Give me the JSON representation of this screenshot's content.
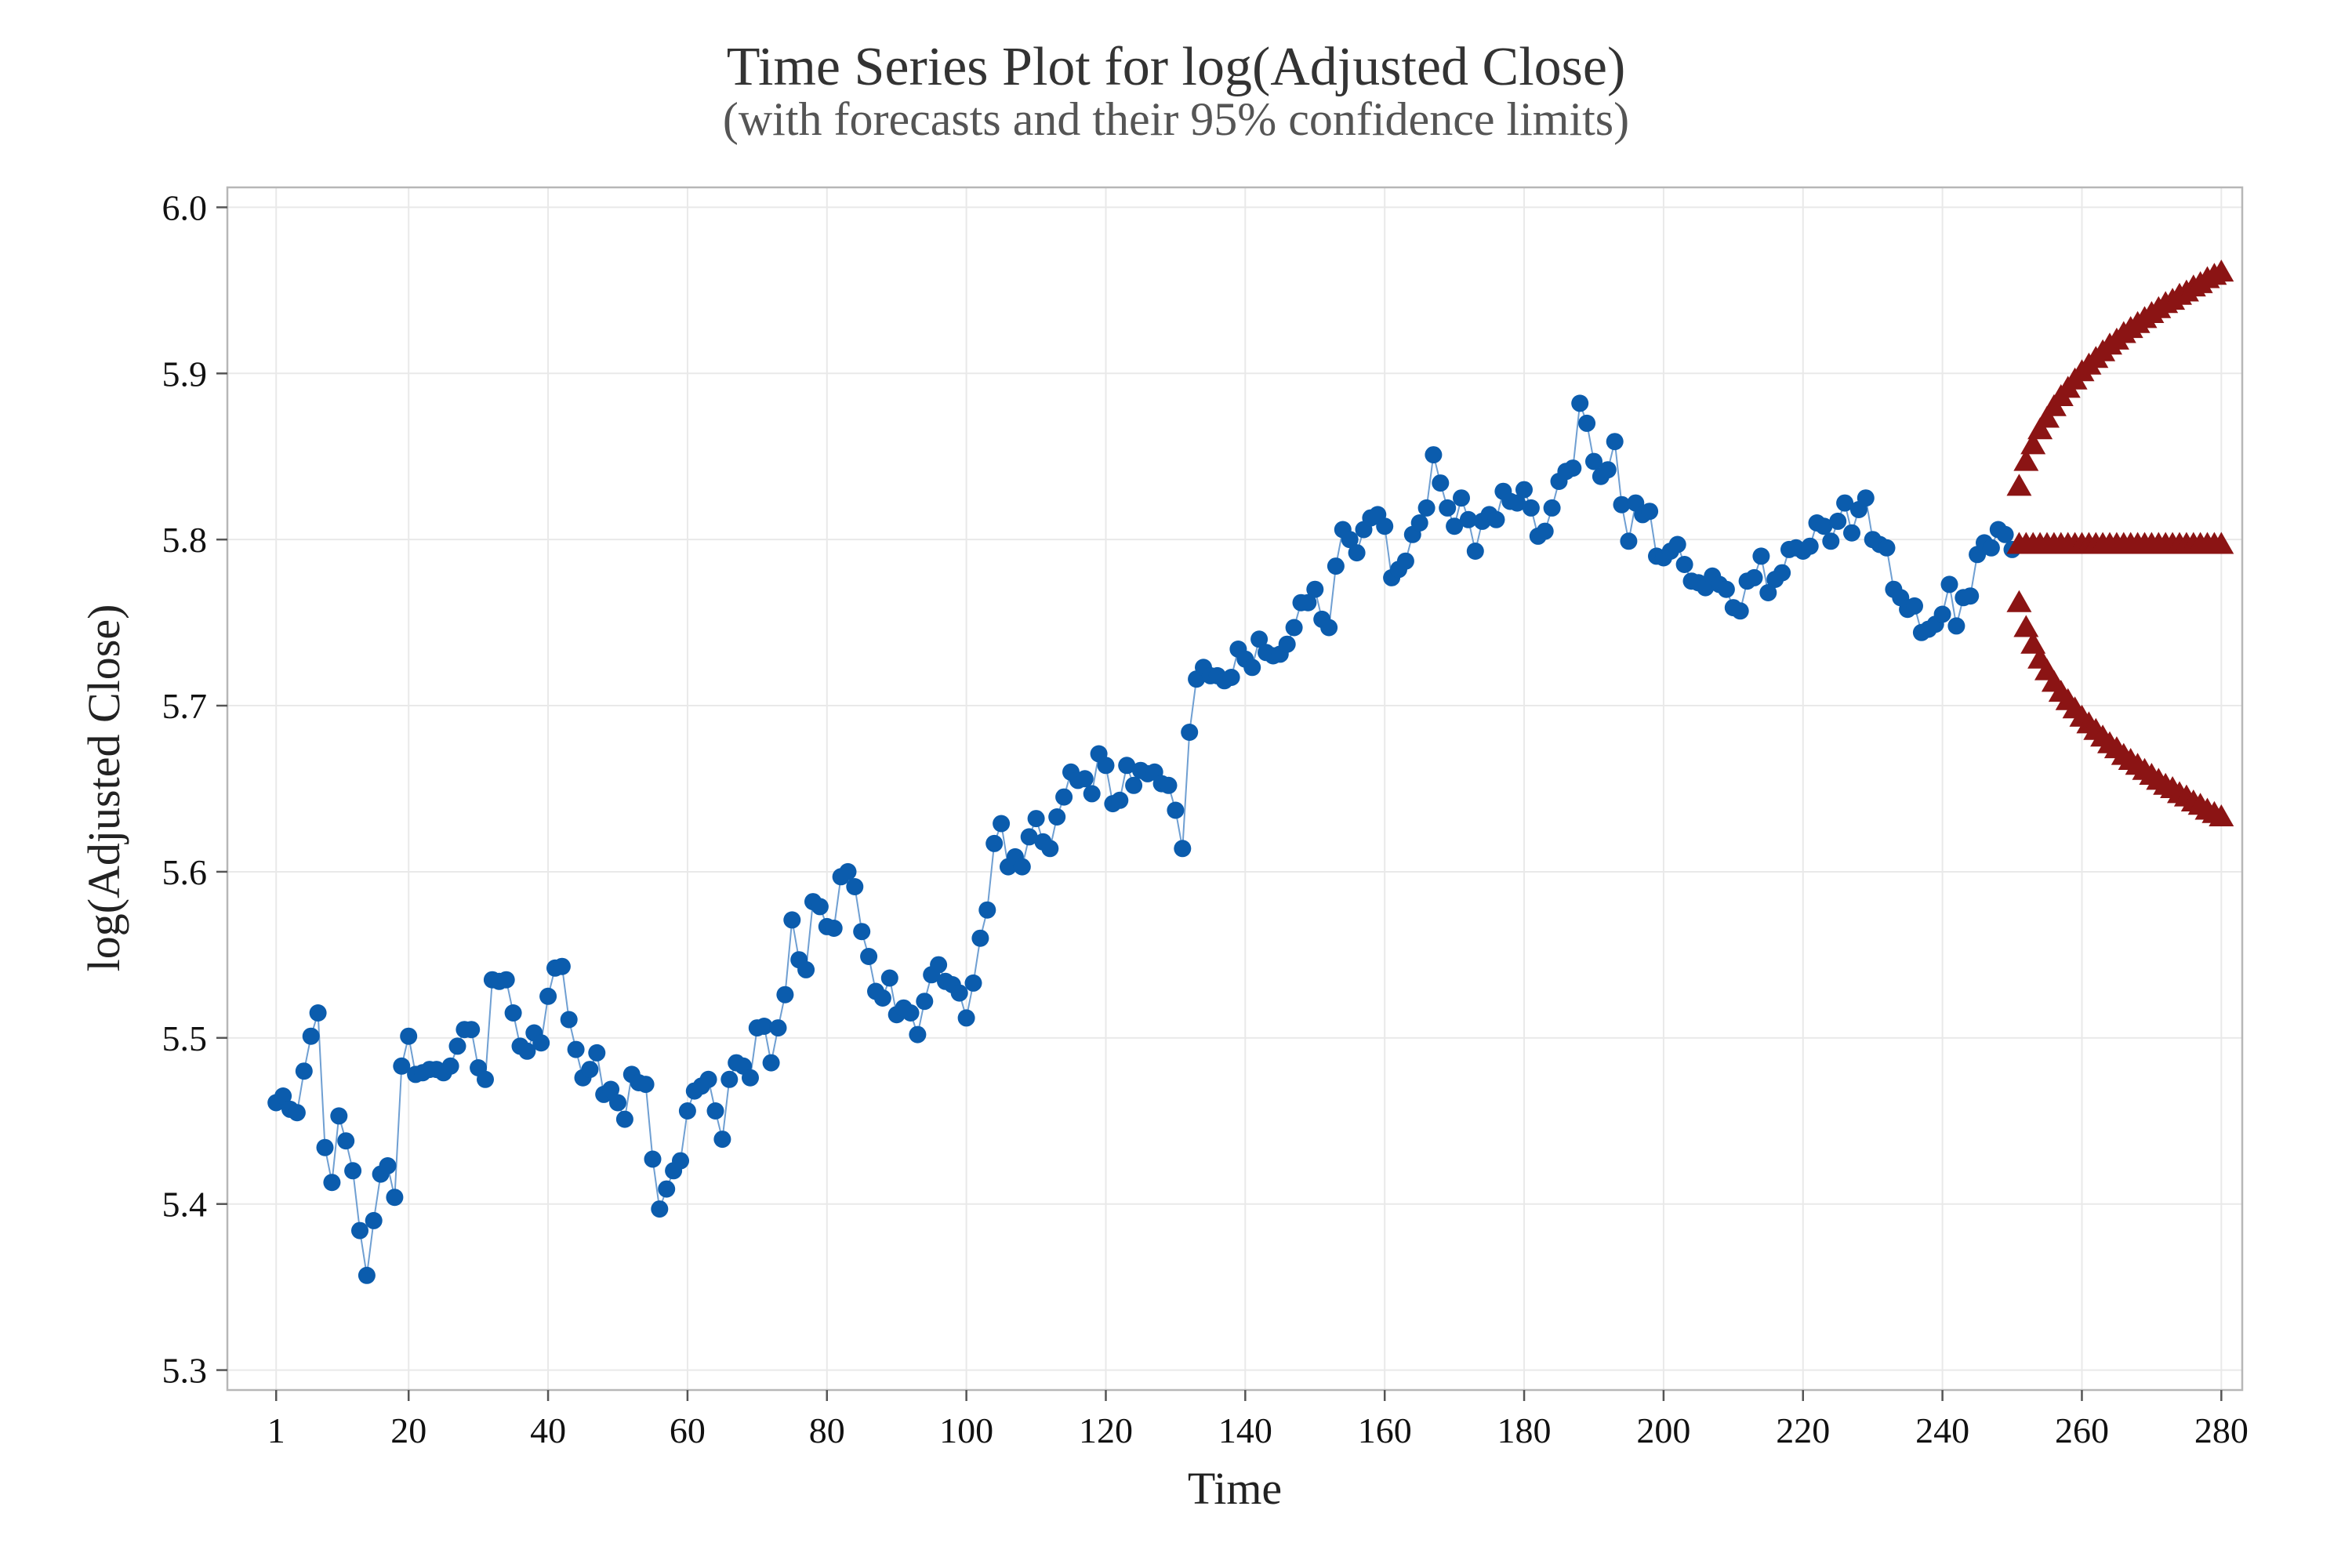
{
  "chart_data": {
    "type": "line",
    "title": "Time Series Plot for log(Adjusted Close)",
    "subtitle": "(with forecasts and their 95% confidence limits)",
    "xlabel": "Time",
    "ylabel": "log(Adjusted Close)",
    "xlim": [
      -6,
      283
    ],
    "ylim": [
      5.288,
      6.012
    ],
    "xticks": [
      1,
      20,
      40,
      60,
      80,
      100,
      120,
      140,
      160,
      180,
      200,
      220,
      240,
      260,
      280
    ],
    "yticks": [
      "5.3",
      "5.4",
      "5.5",
      "5.6",
      "5.7",
      "5.8",
      "5.9",
      "6.0"
    ],
    "grid": true,
    "colors": {
      "observed": "#0b5cad",
      "observed_line": "#6f9fd2",
      "forecast": "#8b1414"
    },
    "series": [
      {
        "marker": "circle",
        "x_start": 1,
        "values": [
          5.461,
          5.465,
          5.457,
          5.455,
          5.48,
          5.501,
          5.515,
          5.434,
          5.413,
          5.453,
          5.438,
          5.42,
          5.384,
          5.357,
          5.39,
          5.418,
          5.423,
          5.404,
          5.483,
          5.501,
          5.478,
          5.479,
          5.481,
          5.481,
          5.479,
          5.483,
          5.495,
          5.505,
          5.505,
          5.482,
          5.475,
          5.535,
          5.534,
          5.535,
          5.515,
          5.495,
          5.492,
          5.503,
          5.497,
          5.525,
          5.542,
          5.543,
          5.511,
          5.493,
          5.476,
          5.481,
          5.491,
          5.466,
          5.469,
          5.461,
          5.451,
          5.478,
          5.473,
          5.472,
          5.427,
          5.397,
          5.409,
          5.42,
          5.426,
          5.456,
          5.468,
          5.471,
          5.475,
          5.456,
          5.439,
          5.475,
          5.485,
          5.483,
          5.476,
          5.506,
          5.507,
          5.485,
          5.506,
          5.526,
          5.571,
          5.547,
          5.541,
          5.582,
          5.579,
          5.567,
          5.566,
          5.597,
          5.6,
          5.591,
          5.564,
          5.549,
          5.528,
          5.524,
          5.536,
          5.514,
          5.518,
          5.515,
          5.502,
          5.522,
          5.538,
          5.544,
          5.534,
          5.532,
          5.527,
          5.512,
          5.533,
          5.56,
          5.577,
          5.617,
          5.629,
          5.603,
          5.609,
          5.603,
          5.621,
          5.632,
          5.618,
          5.614,
          5.633,
          5.645,
          5.66,
          5.655,
          5.656,
          5.647,
          5.671,
          5.664,
          5.641,
          5.643,
          5.664,
          5.652,
          5.661,
          5.659,
          5.66,
          5.653,
          5.652,
          5.637,
          5.614,
          5.684,
          5.716,
          5.723,
          5.718,
          5.718,
          5.715,
          5.717,
          5.734,
          5.728,
          5.723,
          5.74,
          5.732,
          5.73,
          5.731,
          5.737,
          5.747,
          5.762,
          5.762,
          5.77,
          5.752,
          5.747,
          5.784,
          5.806,
          5.8,
          5.792,
          5.806,
          5.813,
          5.815,
          5.808,
          5.777,
          5.782,
          5.787,
          5.803,
          5.81,
          5.819,
          5.851,
          5.834,
          5.819,
          5.808,
          5.825,
          5.812,
          5.793,
          5.811,
          5.815,
          5.812,
          5.829,
          5.823,
          5.822,
          5.83,
          5.819,
          5.802,
          5.805,
          5.819,
          5.835,
          5.841,
          5.843,
          5.882,
          5.87,
          5.847,
          5.838,
          5.842,
          5.859,
          5.821,
          5.799,
          5.822,
          5.815,
          5.817,
          5.79,
          5.789,
          5.793,
          5.797,
          5.785,
          5.775,
          5.774,
          5.771,
          5.778,
          5.773,
          5.77,
          5.759,
          5.757,
          5.775,
          5.777,
          5.79,
          5.768,
          5.776,
          5.78,
          5.794,
          5.795,
          5.793,
          5.796,
          5.81,
          5.808,
          5.799,
          5.811,
          5.822,
          5.804,
          5.818,
          5.825,
          5.8,
          5.797,
          5.795,
          5.77,
          5.765,
          5.758,
          5.76,
          5.744,
          5.746,
          5.749,
          5.755,
          5.773,
          5.748,
          5.765,
          5.766,
          5.791,
          5.798,
          5.795,
          5.806,
          5.803,
          5.794
        ]
      },
      {
        "marker": "triangle",
        "x_start": 251,
        "values": [
          5.797,
          5.797,
          5.797,
          5.797,
          5.797,
          5.797,
          5.797,
          5.797,
          5.797,
          5.797,
          5.797,
          5.797,
          5.797,
          5.797,
          5.797,
          5.797,
          5.797,
          5.797,
          5.797,
          5.797,
          5.797,
          5.797,
          5.797,
          5.797,
          5.797,
          5.797,
          5.797,
          5.797,
          5.797,
          5.797
        ]
      },
      {
        "marker": "triangle",
        "x_start": 251,
        "values": [
          5.832,
          5.847,
          5.857,
          5.866,
          5.873,
          5.88,
          5.886,
          5.891,
          5.896,
          5.901,
          5.905,
          5.909,
          5.913,
          5.917,
          5.92,
          5.924,
          5.927,
          5.93,
          5.933,
          5.936,
          5.939,
          5.942,
          5.944,
          5.947,
          5.949,
          5.952,
          5.954,
          5.957,
          5.959,
          5.961
        ]
      },
      {
        "marker": "triangle",
        "x_start": 251,
        "values": [
          5.762,
          5.747,
          5.737,
          5.728,
          5.721,
          5.714,
          5.708,
          5.703,
          5.698,
          5.693,
          5.689,
          5.685,
          5.681,
          5.677,
          5.674,
          5.67,
          5.667,
          5.664,
          5.661,
          5.658,
          5.655,
          5.652,
          5.65,
          5.647,
          5.645,
          5.642,
          5.64,
          5.637,
          5.635,
          5.633
        ]
      }
    ]
  }
}
